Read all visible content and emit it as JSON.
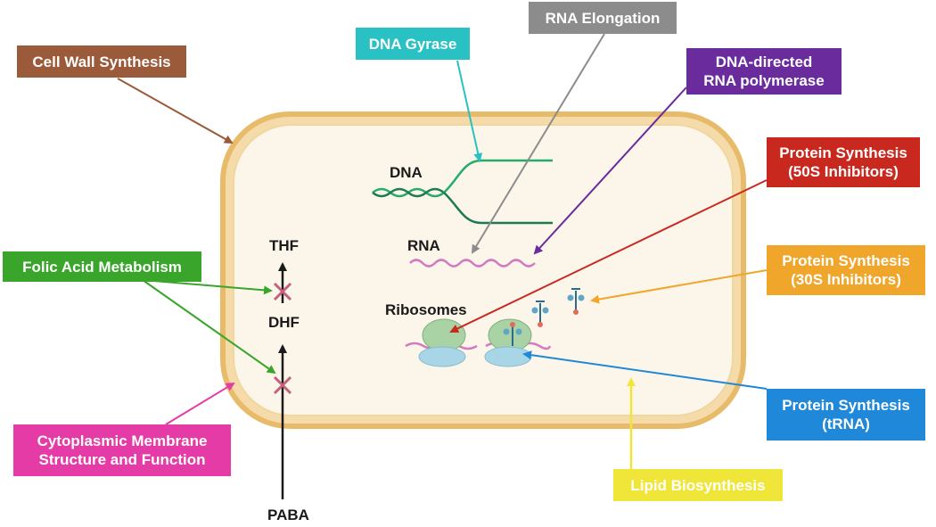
{
  "labels": {
    "cell_wall": "Cell Wall Synthesis",
    "dna_gyrase": "DNA Gyrase",
    "rna_elongation": "RNA Elongation",
    "rna_polymerase": [
      "DNA-directed",
      "RNA polymerase"
    ],
    "protein_50s": [
      "Protein Synthesis",
      "(50S Inhibitors)"
    ],
    "protein_30s": [
      "Protein Synthesis",
      "(30S Inhibitors)"
    ],
    "folic_acid": "Folic Acid Metabolism",
    "membrane": [
      "Cytoplasmic Membrane",
      "Structure and Function"
    ],
    "protein_trna": [
      "Protein Synthesis",
      "(tRNA)"
    ],
    "lipid": "Lipid Biosynthesis"
  },
  "cell": {
    "dna": "DNA",
    "rna": "RNA",
    "ribosomes": "Ribosomes",
    "thf": "THF",
    "dhf": "DHF",
    "paba": "PABA"
  },
  "colors": {
    "cell_wall": "#9b5a3a",
    "dna_gyrase": "#29c1c4",
    "rna_elongation": "#8c8c8c",
    "rna_polymerase": "#6a2b9c",
    "protein_50s": "#c9281f",
    "protein_30s": "#f0a62b",
    "folic_acid": "#3aa52b",
    "membrane": "#e43ba6",
    "protein_trna": "#1f88d8",
    "lipid": "#f0e63a",
    "cell_fill": "#fcf6ea",
    "cell_border": "#e8bb6b",
    "dna_strand": "#27ab6a",
    "rna_strand": "#d27cc0",
    "inhibit_x": "#c4607a"
  }
}
